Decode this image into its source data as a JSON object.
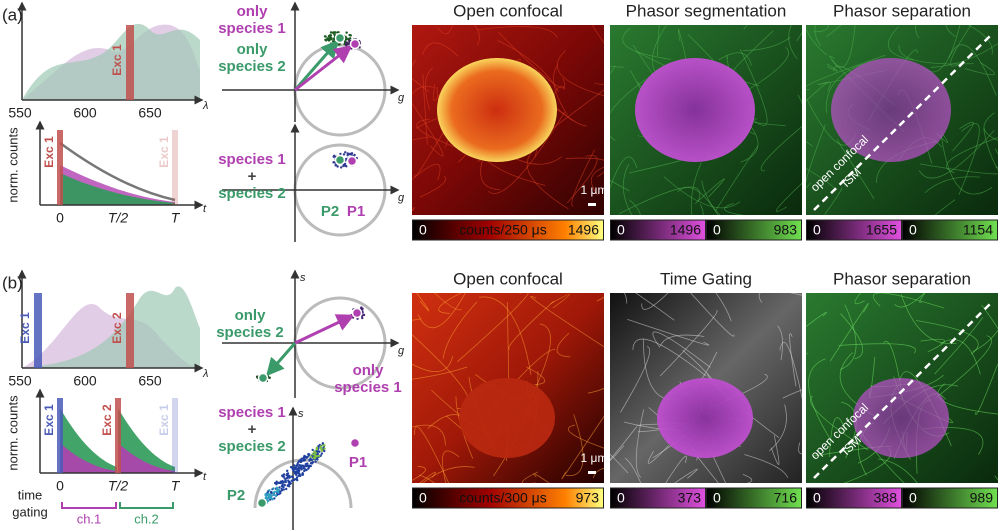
{
  "panels": [
    {
      "label": "(a)",
      "spectrum": {
        "ticks": [
          "550",
          "600",
          "650"
        ],
        "axis": "λ",
        "excitations": [
          "Exc 1"
        ]
      },
      "decay": {
        "ylabel": "norm. counts",
        "excitations": [
          "Exc 1",
          "Exc 1"
        ],
        "ticks": [
          "0",
          "T/2",
          "T"
        ],
        "axis": "t"
      },
      "phasor_top": {
        "species_1": [
          "only",
          "species 1"
        ],
        "species_2": [
          "only",
          "species 2"
        ],
        "g_label": "g"
      },
      "phasor_bottom": {
        "mixture": [
          "species 1",
          "+",
          "species 2"
        ],
        "points": [
          "P1",
          "P2"
        ],
        "g_label": "g"
      },
      "images": [
        {
          "title": "Open confocal",
          "scale": "1 μm",
          "colorbars": [
            {
              "min": "0",
              "label": "counts/250 μs",
              "max": "1496"
            }
          ]
        },
        {
          "title": "Phasor segmentation",
          "colorbars": [
            {
              "min": "0",
              "max": "1496"
            },
            {
              "min": "0",
              "max": "983"
            }
          ]
        },
        {
          "title": "Phasor separation",
          "diagonal": [
            "open confocal",
            "ISM"
          ],
          "colorbars": [
            {
              "min": "0",
              "max": "1655"
            },
            {
              "min": "0",
              "max": "1154"
            }
          ]
        }
      ]
    },
    {
      "label": "(b)",
      "spectrum": {
        "ticks": [
          "550",
          "600",
          "650"
        ],
        "axis": "λ",
        "excitations": [
          "Exc 1",
          "Exc 2"
        ]
      },
      "decay": {
        "ylabel": "norm. counts",
        "excitations": [
          "Exc 1",
          "Exc 2",
          "Exc 1"
        ],
        "ticks": [
          "0",
          "T/2",
          "T"
        ],
        "axis": "t",
        "gating": [
          "time",
          "gating"
        ],
        "channels": [
          "ch.1",
          "ch.2"
        ]
      },
      "phasor_top": {
        "species_1": [
          "only",
          "species 1"
        ],
        "species_2": [
          "only",
          "species 2"
        ],
        "g_label": "g",
        "s_label": "s"
      },
      "phasor_bottom": {
        "mixture": [
          "species 1",
          "+",
          "species 2"
        ],
        "points": [
          "P1",
          "P2"
        ],
        "s_label": "s"
      },
      "images": [
        {
          "title": "Open confocal",
          "scale": "1 μm",
          "colorbars": [
            {
              "min": "0",
              "label": "counts/300 μs",
              "max": "973"
            }
          ]
        },
        {
          "title": "Time Gating",
          "colorbars": [
            {
              "min": "0",
              "max": "373"
            },
            {
              "min": "0",
              "max": "716"
            }
          ]
        },
        {
          "title": "Phasor separation",
          "diagonal": [
            "open confocal",
            "ISM"
          ],
          "colorbars": [
            {
              "min": "0",
              "max": "388"
            },
            {
              "min": "0",
              "max": "989"
            }
          ]
        }
      ]
    }
  ]
}
